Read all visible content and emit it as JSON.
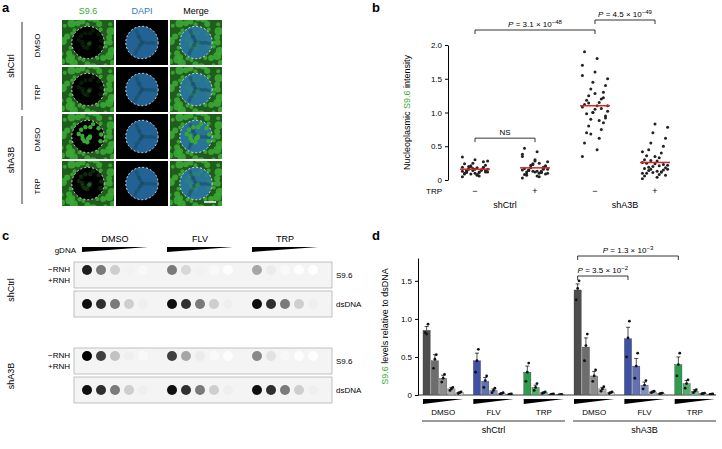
{
  "chart_data": [
    {
      "type": "image_grid",
      "panel": "a",
      "columns": [
        {
          "text": "S9.6",
          "color": "#3aaa35"
        },
        {
          "text": "DAPI",
          "color": "#2b7bb9"
        },
        {
          "text": "Merge",
          "color": "#000000"
        }
      ],
      "row_groups": [
        {
          "name": "shCtrl",
          "rows": [
            "DMSO",
            "TRP"
          ]
        },
        {
          "name": "shA3B",
          "rows": [
            "DMSO",
            "TRP"
          ]
        }
      ]
    },
    {
      "type": "strip",
      "panel": "b",
      "y_label": [
        {
          "text": "Nucleoplasmic "
        },
        {
          "text": "S9.6",
          "color": "#3aaa35"
        },
        {
          "text": " intensity"
        }
      ],
      "ylim": [
        0,
        2
      ],
      "yticks": [
        0,
        0.5,
        {
          "value": 1,
          "label": "1.0"
        },
        1.5,
        {
          "value": 2,
          "label": "2.0"
        }
      ],
      "category_title": "TRP",
      "categories": [
        "−",
        "+",
        "−",
        "+"
      ],
      "clusters": [
        "shCtrl",
        "shA3B"
      ],
      "color": "#222222",
      "groups": [
        {
          "mean": 0.16,
          "values": [
            0.05,
            0.08,
            0.1,
            0.12,
            0.14,
            0.15,
            0.16,
            0.18,
            0.2,
            0.22,
            0.25,
            0.28,
            0.3,
            0.34,
            0.07,
            0.09,
            0.11,
            0.13,
            0.15,
            0.17,
            0.19,
            0.21,
            0.12,
            0.14,
            0.16,
            0.1,
            0.13,
            0.18,
            0.24,
            0.06,
            0.11,
            0.15,
            0.2,
            0.27,
            0.09,
            0.14,
            0.17,
            0.12,
            0.16,
            0.19
          ]
        },
        {
          "mean": 0.18,
          "values": [
            0.03,
            0.06,
            0.08,
            0.1,
            0.12,
            0.13,
            0.15,
            0.17,
            0.19,
            0.21,
            0.24,
            0.27,
            0.3,
            0.35,
            0.42,
            0.47,
            0.05,
            0.09,
            0.11,
            0.14,
            0.16,
            0.18,
            0.2,
            0.23,
            0.1,
            0.12,
            0.15,
            0.13,
            0.17,
            0.25,
            0.07,
            0.11,
            0.14,
            0.19,
            0.22,
            0.09,
            0.13,
            0.16,
            0.28,
            0.38
          ]
        },
        {
          "mean": 1.1,
          "values": [
            0.35,
            0.45,
            0.55,
            0.62,
            0.7,
            0.75,
            0.8,
            0.85,
            0.9,
            0.95,
            1.0,
            1.02,
            1.05,
            1.08,
            1.1,
            1.12,
            1.15,
            1.18,
            1.2,
            1.25,
            1.3,
            1.35,
            1.4,
            1.45,
            1.5,
            1.6,
            1.7,
            1.8,
            1.9,
            0.88,
            0.98,
            1.06,
            1.14,
            1.22,
            0.68,
            0.92,
            1.0,
            1.1,
            1.28,
            1.55
          ]
        },
        {
          "mean": 0.26,
          "values": [
            0.02,
            0.04,
            0.06,
            0.08,
            0.1,
            0.12,
            0.14,
            0.15,
            0.16,
            0.18,
            0.2,
            0.22,
            0.24,
            0.26,
            0.28,
            0.3,
            0.33,
            0.36,
            0.4,
            0.45,
            0.5,
            0.55,
            0.62,
            0.7,
            0.78,
            0.83,
            0.1,
            0.13,
            0.17,
            0.21,
            0.25,
            0.12,
            0.19,
            0.23,
            0.29,
            0.07,
            0.11,
            0.16,
            0.35,
            0.42
          ]
        }
      ],
      "annotations": [
        {
          "label": "NS"
        },
        {
          "label": "P",
          "text": " = 3.1 × 10",
          "exponent": "−48"
        },
        {
          "label": "P",
          "text": " = 4.5 × 10",
          "exponent": "−49"
        }
      ]
    },
    {
      "type": "dot_blot",
      "panel": "c",
      "treatments": [
        "DMSO",
        "FLV",
        "TRP"
      ],
      "dilution_label": "gDNA",
      "rnh_labels": [
        "−RNH",
        "+RNH"
      ],
      "probes": [
        "S9.6",
        "dsDNA"
      ],
      "blocks": [
        {
          "name": "shCtrl",
          "intensity_s96": [
            [
              0.9,
              0.6,
              0.3,
              0.1,
              0.05
            ],
            [
              0.6,
              0.25,
              0.1,
              0.05,
              0.02
            ],
            [
              0.45,
              0.15,
              0.05,
              0.02,
              0.01
            ]
          ],
          "intensity_dsdna": [
            [
              0.95,
              0.85,
              0.6,
              0.3,
              0.12
            ],
            [
              0.95,
              0.85,
              0.6,
              0.3,
              0.12
            ],
            [
              0.95,
              0.85,
              0.6,
              0.3,
              0.12
            ]
          ]
        },
        {
          "name": "shA3B",
          "intensity_s96": [
            [
              1,
              0.8,
              0.35,
              0.12,
              0.05
            ],
            [
              0.8,
              0.45,
              0.15,
              0.05,
              0.02
            ],
            [
              0.55,
              0.2,
              0.06,
              0.02,
              0.01
            ]
          ],
          "intensity_dsdna": [
            [
              0.95,
              0.85,
              0.6,
              0.3,
              0.12
            ],
            [
              0.95,
              0.85,
              0.6,
              0.3,
              0.12
            ],
            [
              0.95,
              0.85,
              0.6,
              0.3,
              0.12
            ]
          ]
        }
      ]
    },
    {
      "type": "bar",
      "panel": "d",
      "y_label": [
        {
          "text": "S9.6",
          "color": "#3aaa35"
        },
        {
          "text": " levels relative to dsDNA"
        }
      ],
      "ylim": [
        0,
        1.8
      ],
      "yticks": [
        0,
        0.5,
        {
          "value": 1,
          "label": "1.0"
        },
        1.5
      ],
      "clusters": [
        {
          "name": "shCtrl",
          "groups": [
            {
              "name": "DMSO",
              "color": "#4d4d4d",
              "values": [
                0.85,
                0.45,
                0.22,
                0.08,
                0.03
              ],
              "errors": [
                0.05,
                0.08,
                0.04,
                0.02,
                0.01
              ],
              "points": [
                [
                  0.82,
                  0.8,
                  0.93
                ],
                [
                  0.35,
                  0.47,
                  0.53
                ],
                [
                  0.17,
                  0.22,
                  0.27
                ],
                [
                  0.06,
                  0.08,
                  0.1
                ],
                [
                  0.02,
                  0.03,
                  0.04
                ]
              ]
            },
            {
              "name": "FLV",
              "color": "#3f51a3",
              "values": [
                0.45,
                0.18,
                0.06,
                0.02,
                0.01
              ],
              "errors": [
                0.1,
                0.05,
                0.02,
                0.01,
                0.005
              ],
              "points": [
                [
                  0.3,
                  0.45,
                  0.6
                ],
                [
                  0.1,
                  0.19,
                  0.25
                ],
                [
                  0.03,
                  0.06,
                  0.09
                ],
                [
                  0.01,
                  0.02,
                  0.03
                ],
                [
                  0.005,
                  0.01,
                  0.015
                ]
              ]
            },
            {
              "name": "TRP",
              "color": "#2e9b4e",
              "values": [
                0.3,
                0.1,
                0.03,
                0.01,
                0.005
              ],
              "errors": [
                0.08,
                0.03,
                0.01,
                0.005,
                0.003
              ],
              "points": [
                [
                  0.18,
                  0.3,
                  0.42
                ],
                [
                  0.06,
                  0.1,
                  0.15
                ],
                [
                  0.02,
                  0.03,
                  0.04
                ],
                [
                  0.005,
                  0.01,
                  0.015
                ],
                [
                  0.002,
                  0.005,
                  0.008
                ]
              ]
            }
          ]
        },
        {
          "name": "shA3B",
          "groups": [
            {
              "name": "DMSO",
              "color": "#4d4d4d",
              "values": [
                1.38,
                0.63,
                0.25,
                0.08,
                0.03
              ],
              "errors": [
                0.08,
                0.12,
                0.06,
                0.02,
                0.01
              ],
              "points": [
                [
                  1.25,
                  1.4,
                  1.5
                ],
                [
                  0.45,
                  0.65,
                  0.8
                ],
                [
                  0.18,
                  0.25,
                  0.33
                ],
                [
                  0.05,
                  0.08,
                  0.11
                ],
                [
                  0.02,
                  0.03,
                  0.04
                ]
              ]
            },
            {
              "name": "FLV",
              "color": "#3f51a3",
              "values": [
                0.74,
                0.38,
                0.13,
                0.04,
                0.02
              ],
              "errors": [
                0.15,
                0.1,
                0.04,
                0.01,
                0.005
              ],
              "points": [
                [
                  0.5,
                  0.75,
                  0.97
                ],
                [
                  0.22,
                  0.38,
                  0.55
                ],
                [
                  0.08,
                  0.13,
                  0.19
                ],
                [
                  0.03,
                  0.04,
                  0.05
                ],
                [
                  0.015,
                  0.02,
                  0.025
                ]
              ]
            },
            {
              "name": "TRP",
              "color": "#2e9b4e",
              "values": [
                0.4,
                0.15,
                0.05,
                0.02,
                0.01
              ],
              "errors": [
                0.1,
                0.04,
                0.02,
                0.005,
                0.003
              ],
              "points": [
                [
                  0.25,
                  0.4,
                  0.55
                ],
                [
                  0.09,
                  0.15,
                  0.2
                ],
                [
                  0.03,
                  0.05,
                  0.07
                ],
                [
                  0.015,
                  0.02,
                  0.025
                ],
                [
                  0.007,
                  0.01,
                  0.013
                ]
              ]
            }
          ]
        }
      ],
      "annotations": [
        {
          "label": "P",
          "text": " = 3.5 × 10",
          "exponent": "−2"
        },
        {
          "label": "P",
          "text": " = 1.3 × 10",
          "exponent": "−3"
        }
      ]
    }
  ]
}
